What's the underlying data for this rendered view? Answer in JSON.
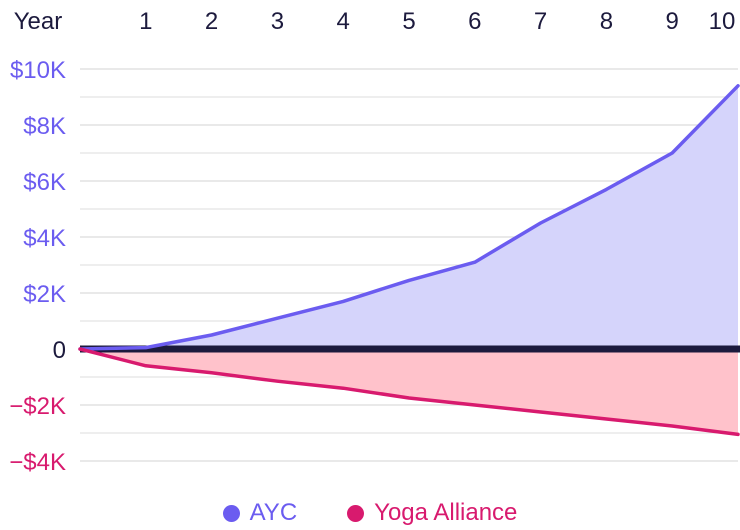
{
  "chart_data": {
    "type": "area",
    "xlabel": "Year",
    "x": [
      0,
      1,
      2,
      3,
      4,
      5,
      6,
      7,
      8,
      9,
      10
    ],
    "x_tick_labels": [
      "1",
      "2",
      "3",
      "4",
      "5",
      "6",
      "7",
      "8",
      "9",
      "10"
    ],
    "y_tick_labels": [
      "$10K",
      "$8K",
      "$6K",
      "$4K",
      "$2K",
      "0",
      "−$2K",
      "−$4K"
    ],
    "y_tick_values": [
      10000,
      8000,
      6000,
      4000,
      2000,
      0,
      -2000,
      -4000
    ],
    "ylim": [
      -4000,
      10000
    ],
    "xlim": [
      0,
      10
    ],
    "grid": true,
    "legend_position": "bottom-center",
    "series": [
      {
        "name": "AYC",
        "color": "#6b5cf0",
        "fill": "#d5d4fb",
        "values": [
          0,
          50,
          500,
          1100,
          1700,
          2450,
          3100,
          4500,
          5700,
          7000,
          9400
        ]
      },
      {
        "name": "Yoga Alliance",
        "color": "#d81a6e",
        "fill": "#ffc2cb",
        "values": [
          0,
          -600,
          -850,
          -1150,
          -1400,
          -1750,
          -2000,
          -2250,
          -2500,
          -2750,
          -3050
        ]
      }
    ],
    "colors": {
      "axis_zero": "#1c1a3d",
      "grid": "#dcdcdc",
      "positive_tick": "#6b5cf0",
      "negative_tick": "#d81a6e",
      "top_tick": "#1c1a3d"
    }
  }
}
